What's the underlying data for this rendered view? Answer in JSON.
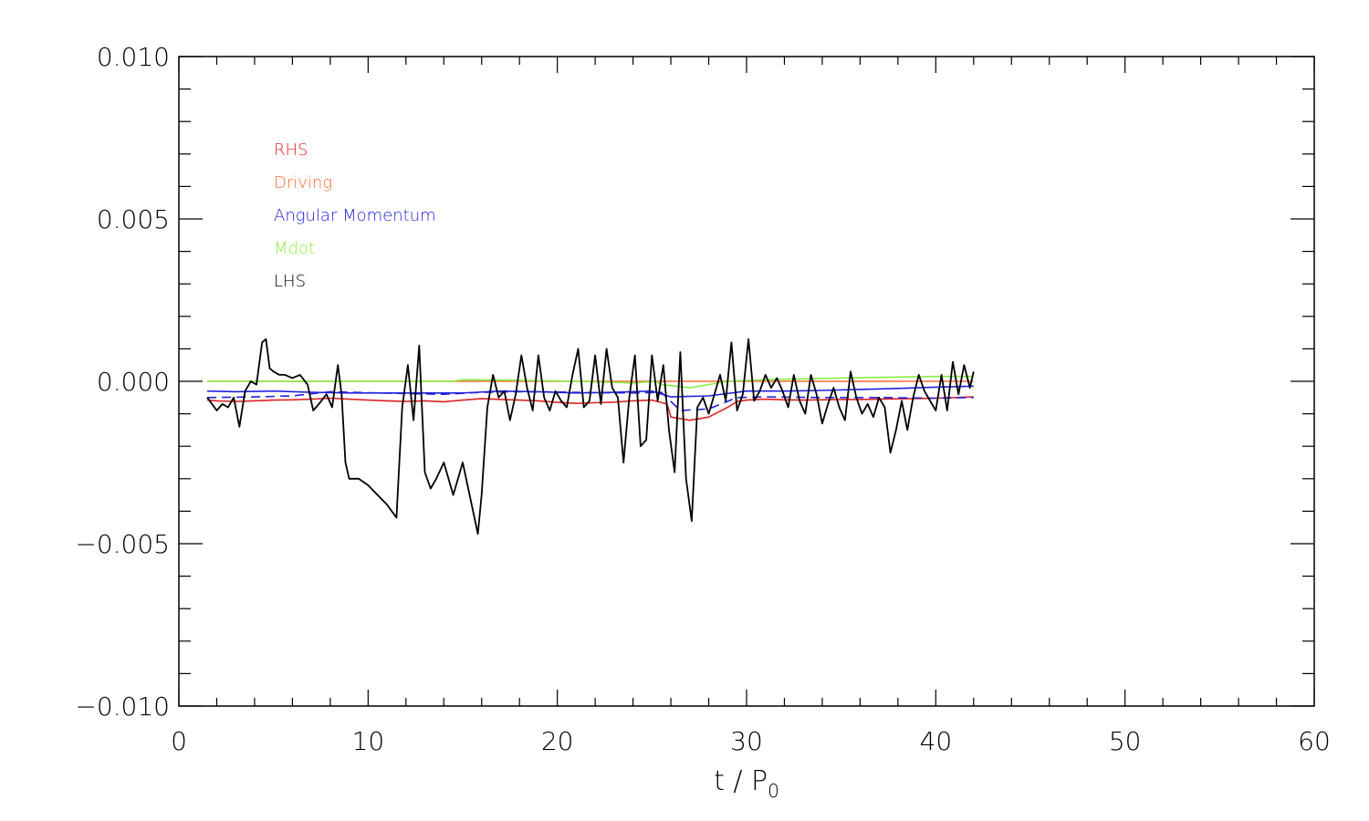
{
  "chart_data": {
    "type": "line",
    "title": "",
    "xlabel": "t / P",
    "xlabel_subscript": "0",
    "ylabel": "",
    "xlim": [
      0,
      60
    ],
    "ylim": [
      -0.01,
      0.01
    ],
    "x_ticks": [
      0,
      10,
      20,
      30,
      40,
      50,
      60
    ],
    "x_tick_labels": [
      "0",
      "10",
      "20",
      "30",
      "40",
      "50",
      "60"
    ],
    "y_ticks": [
      -0.01,
      -0.005,
      0.0,
      0.005,
      0.01
    ],
    "y_tick_labels": [
      "−0.010",
      "−0.005",
      "0.000",
      "0.005",
      "0.010"
    ],
    "grid": false,
    "legend_placement": "top-left",
    "series": [
      {
        "name": "RHS",
        "color": "#dd2222",
        "style": "solid",
        "x": [
          1.5,
          2,
          3,
          4,
          5,
          6,
          7,
          8,
          9,
          10,
          11,
          12,
          13,
          14,
          15,
          16,
          17,
          18,
          19,
          20,
          21,
          22,
          23,
          24,
          25,
          25.8,
          26,
          27,
          28,
          28.5,
          29,
          29.5,
          30,
          31,
          32,
          33,
          34,
          35,
          36,
          37,
          38,
          39,
          40,
          41,
          42
        ],
        "y": [
          -0.00058,
          -0.0006,
          -0.00062,
          -0.0006,
          -0.00058,
          -0.00057,
          -0.00055,
          -0.00052,
          -0.00055,
          -0.00058,
          -0.0006,
          -0.00062,
          -0.0006,
          -0.00063,
          -0.00058,
          -0.00053,
          -0.00056,
          -0.00058,
          -0.0006,
          -0.00065,
          -0.00068,
          -0.00066,
          -0.00064,
          -0.0006,
          -0.00058,
          -0.0007,
          -0.0011,
          -0.0012,
          -0.0011,
          -0.00095,
          -0.0008,
          -0.00062,
          -0.00058,
          -0.00055,
          -0.00057,
          -0.00058,
          -0.00057,
          -0.00056,
          -0.00056,
          -0.00055,
          -0.00054,
          -0.00053,
          -0.00052,
          -0.0005,
          -0.00048
        ]
      },
      {
        "name": "Driving",
        "color": "#ff6a33",
        "style": "solid",
        "x": [
          1.5,
          10,
          20,
          30,
          42
        ],
        "y": [
          0.0,
          0.0,
          0.0,
          0.0,
          0.0
        ]
      },
      {
        "name": "Angular Momentum",
        "color": "#2222dd",
        "style": "solid",
        "x": [
          1.5,
          3,
          5,
          7,
          9,
          11,
          13,
          15,
          17,
          19,
          21,
          23,
          25,
          26,
          28,
          30,
          32,
          34,
          36,
          38,
          40,
          42
        ],
        "y": [
          -0.0003,
          -0.00032,
          -0.0003,
          -0.00034,
          -0.00036,
          -0.00036,
          -0.00036,
          -0.00036,
          -0.0003,
          -0.00032,
          -0.00036,
          -0.00034,
          -0.0003,
          -0.00048,
          -0.00045,
          -0.0003,
          -0.0003,
          -0.00028,
          -0.00025,
          -0.00022,
          -0.00018,
          -0.00015
        ]
      },
      {
        "name": "Angular Momentum (dashed)",
        "color": "#2222dd",
        "style": "dashed",
        "x": [
          1.5,
          4,
          6,
          8,
          10,
          12,
          14,
          16,
          18,
          20,
          22,
          24,
          25.5,
          26.5,
          28,
          29.5,
          31,
          34,
          37,
          40,
          42
        ],
        "y": [
          -0.0005,
          -0.00048,
          -0.00045,
          -0.00032,
          -0.00035,
          -0.00038,
          -0.0004,
          -0.00034,
          -0.00032,
          -0.00033,
          -0.00035,
          -0.00036,
          -0.00034,
          -0.0009,
          -0.00085,
          -0.0005,
          -0.00048,
          -0.0005,
          -0.0005,
          -0.00052,
          -0.0005
        ]
      },
      {
        "name": "Mdot",
        "color": "#88ee44",
        "style": "solid",
        "x": [
          1.5,
          10,
          14.5,
          15,
          18,
          21,
          24,
          25.2,
          25.5,
          27,
          29,
          31,
          35,
          40,
          42
        ],
        "y": [
          0.0,
          0.0,
          0.0,
          5e-05,
          3e-05,
          0.0,
          -5e-05,
          0.0,
          -0.0001,
          -0.0002,
          0.0,
          5e-05,
          0.0001,
          0.00015,
          0.00015
        ]
      },
      {
        "name": "LHS",
        "color": "#000000",
        "style": "solid",
        "x": [
          1.5,
          2,
          2.3,
          2.6,
          2.9,
          3.2,
          3.5,
          3.8,
          4.1,
          4.4,
          4.6,
          4.8,
          5.0,
          5.3,
          5.6,
          6.0,
          6.4,
          6.8,
          7.1,
          7.4,
          7.8,
          8.1,
          8.4,
          8.6,
          8.8,
          9.0,
          9.5,
          10.0,
          10.5,
          11.0,
          11.5,
          11.8,
          12.1,
          12.4,
          12.7,
          13.0,
          13.3,
          13.6,
          14.0,
          14.5,
          15.0,
          15.4,
          15.8,
          16.0,
          16.3,
          16.6,
          16.9,
          17.2,
          17.5,
          17.8,
          18.1,
          18.4,
          18.7,
          19.0,
          19.3,
          19.6,
          19.9,
          20.2,
          20.5,
          20.8,
          21.1,
          21.4,
          21.7,
          22.0,
          22.3,
          22.6,
          22.9,
          23.2,
          23.5,
          23.8,
          24.1,
          24.4,
          24.7,
          25.0,
          25.3,
          25.6,
          25.9,
          26.2,
          26.5,
          26.8,
          27.1,
          27.4,
          27.7,
          28.0,
          28.3,
          28.6,
          28.9,
          29.2,
          29.5,
          29.8,
          30.1,
          30.4,
          30.7,
          31.0,
          31.3,
          31.6,
          31.9,
          32.2,
          32.5,
          32.8,
          33.1,
          33.4,
          33.7,
          34.0,
          34.3,
          34.6,
          34.9,
          35.2,
          35.5,
          35.8,
          36.1,
          36.4,
          36.7,
          37.0,
          37.3,
          37.6,
          37.9,
          38.2,
          38.5,
          38.8,
          39.1,
          39.4,
          39.7,
          40.0,
          40.3,
          40.6,
          40.9,
          41.2,
          41.5,
          41.8,
          42.0
        ],
        "y": [
          -0.0005,
          -0.0009,
          -0.0007,
          -0.0008,
          -0.0005,
          -0.0014,
          -0.0003,
          0.0,
          -0.0001,
          0.0012,
          0.0013,
          0.0004,
          0.0003,
          0.0002,
          0.0002,
          0.0001,
          0.0002,
          -0.0001,
          -0.0009,
          -0.0007,
          -0.0004,
          -0.0008,
          0.0005,
          -0.0004,
          -0.0025,
          -0.003,
          -0.003,
          -0.0032,
          -0.0035,
          -0.0038,
          -0.0042,
          -0.0008,
          0.0005,
          -0.0012,
          0.0011,
          -0.0028,
          -0.0033,
          -0.003,
          -0.0025,
          -0.0035,
          -0.0025,
          -0.0036,
          -0.0047,
          -0.0035,
          -0.0008,
          0.0002,
          -0.0005,
          -0.0003,
          -0.0012,
          -0.0004,
          0.0008,
          -0.0002,
          -0.0009,
          0.0008,
          -0.0005,
          -0.0009,
          -0.0003,
          -0.0006,
          -0.0008,
          0.0002,
          0.001,
          -0.0008,
          -0.0006,
          0.0008,
          -0.0007,
          0.001,
          -0.0002,
          -0.0005,
          -0.0025,
          -0.0005,
          0.0008,
          -0.002,
          -0.0018,
          0.0008,
          -0.0006,
          0.0005,
          -0.0015,
          -0.0028,
          0.0009,
          -0.003,
          -0.0043,
          -0.0008,
          -0.0005,
          -0.001,
          -0.0004,
          0.0002,
          -0.0006,
          0.0012,
          -0.0009,
          -0.0004,
          0.0013,
          -0.0006,
          -0.0003,
          0.0002,
          -0.0002,
          0.0001,
          -0.0003,
          -0.0008,
          0.0002,
          -0.0006,
          -0.001,
          0.0002,
          -0.0004,
          -0.0013,
          -0.0007,
          -0.0002,
          -0.0008,
          -0.0012,
          0.0003,
          -0.0005,
          -0.001,
          -0.0007,
          -0.0011,
          -0.0005,
          -0.0008,
          -0.0022,
          -0.0015,
          -0.0006,
          -0.0015,
          -0.0005,
          0.0002,
          -0.0003,
          -0.0006,
          -0.0009,
          0.0002,
          -0.0009,
          0.0006,
          -0.0004,
          0.0005,
          -0.0002,
          0.0003
        ]
      }
    ],
    "legend": [
      {
        "label": "RHS",
        "color": "#dd2222"
      },
      {
        "label": "Driving",
        "color": "#ff6a33"
      },
      {
        "label": "Angular Momentum",
        "color": "#2222dd"
      },
      {
        "label": "Mdot",
        "color": "#88ee44"
      },
      {
        "label": "LHS",
        "color": "#000000"
      }
    ]
  }
}
